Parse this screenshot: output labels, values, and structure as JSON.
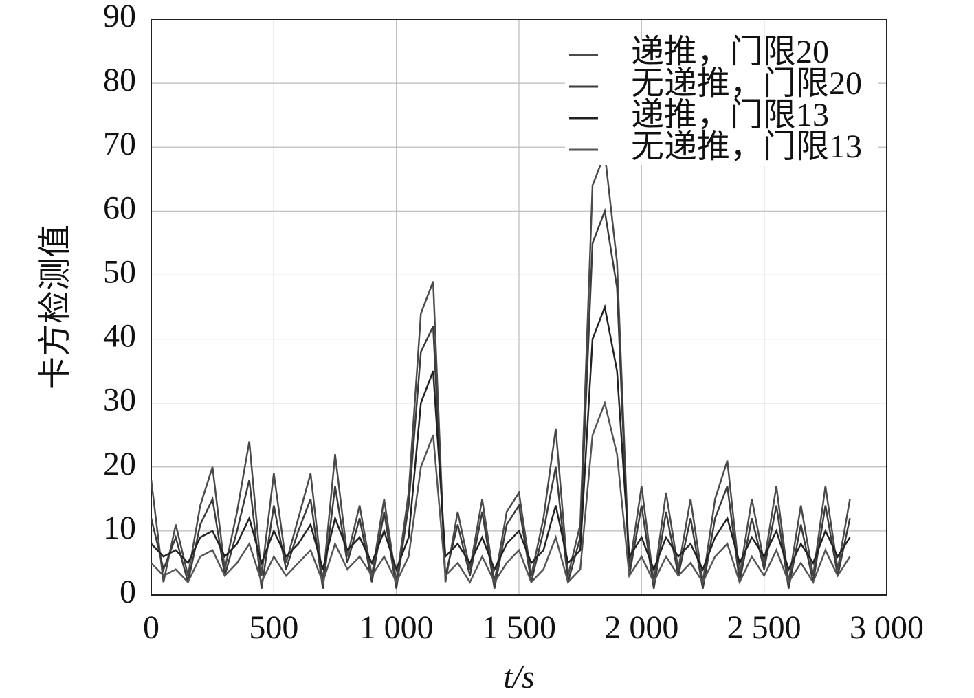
{
  "chart_data": {
    "type": "line",
    "xlabel": "t/s",
    "ylabel": "卡方检测值",
    "x": [
      0,
      50,
      100,
      150,
      200,
      250,
      300,
      350,
      400,
      450,
      500,
      550,
      600,
      650,
      700,
      750,
      800,
      850,
      900,
      950,
      1000,
      1050,
      1100,
      1150,
      1200,
      1250,
      1300,
      1350,
      1400,
      1450,
      1500,
      1550,
      1600,
      1650,
      1700,
      1750,
      1800,
      1850,
      1900,
      1950,
      2000,
      2050,
      2100,
      2150,
      2200,
      2250,
      2300,
      2350,
      2400,
      2450,
      2500,
      2550,
      2600,
      2650,
      2700,
      2750,
      2800,
      2850
    ],
    "series": [
      {
        "name": "递推，门限20",
        "color": "#4a4a4a",
        "values": [
          18,
          2,
          11,
          3,
          14,
          20,
          4,
          13,
          24,
          3,
          19,
          5,
          12,
          19,
          2,
          22,
          6,
          14,
          3,
          15,
          2,
          16,
          44,
          49,
          2,
          13,
          4,
          15,
          2,
          13,
          16,
          3,
          12,
          26,
          3,
          11,
          64,
          69,
          52,
          4,
          17,
          2,
          16,
          4,
          15,
          2,
          15,
          21,
          3,
          15,
          5,
          17,
          2,
          14,
          3,
          17,
          4,
          15
        ]
      },
      {
        "name": "无递推，门限20",
        "color": "#3c3c3c",
        "values": [
          12,
          4,
          9,
          2,
          11,
          15,
          3,
          10,
          18,
          1,
          14,
          4,
          10,
          15,
          1,
          17,
          5,
          12,
          2,
          13,
          1,
          14,
          38,
          42,
          3,
          11,
          3,
          13,
          1,
          11,
          14,
          2,
          10,
          20,
          2,
          9,
          55,
          60,
          48,
          3,
          14,
          1,
          13,
          3,
          12,
          1,
          12,
          17,
          2,
          12,
          4,
          14,
          1,
          11,
          2,
          14,
          3,
          12
        ]
      },
      {
        "name": "递推，门限13",
        "color": "#222222",
        "values": [
          8,
          6,
          7,
          5,
          9,
          10,
          6,
          8,
          12,
          5,
          10,
          6,
          8,
          11,
          4,
          12,
          7,
          9,
          5,
          10,
          4,
          9,
          30,
          35,
          6,
          8,
          5,
          9,
          4,
          8,
          10,
          5,
          7,
          14,
          5,
          7,
          40,
          45,
          35,
          6,
          9,
          4,
          9,
          6,
          8,
          4,
          9,
          12,
          5,
          9,
          6,
          10,
          4,
          8,
          5,
          10,
          6,
          9
        ]
      },
      {
        "name": "无递推，门限13",
        "color": "#555555",
        "values": [
          5,
          3,
          4,
          2,
          6,
          7,
          3,
          5,
          8,
          2,
          6,
          3,
          5,
          7,
          2,
          8,
          4,
          6,
          3,
          6,
          2,
          6,
          20,
          25,
          3,
          5,
          2,
          6,
          2,
          5,
          7,
          2,
          4,
          9,
          2,
          4,
          25,
          30,
          22,
          3,
          6,
          2,
          6,
          3,
          5,
          2,
          6,
          8,
          2,
          6,
          3,
          7,
          2,
          5,
          2,
          7,
          3,
          6
        ]
      }
    ],
    "xlim": [
      0,
      3000
    ],
    "xticks": [
      0,
      500,
      {
        "value": 1000,
        "label": "1 000"
      },
      {
        "value": 1500,
        "label": "1 500"
      },
      {
        "value": 2000,
        "label": "2 000"
      },
      {
        "value": 2500,
        "label": "2 500"
      },
      {
        "value": 3000,
        "label": "3 000"
      }
    ],
    "ylim": [
      0,
      90
    ],
    "yticks": [
      0,
      10,
      20,
      30,
      40,
      50,
      60,
      70,
      80,
      90
    ],
    "grid": true,
    "legend": "upper right"
  }
}
